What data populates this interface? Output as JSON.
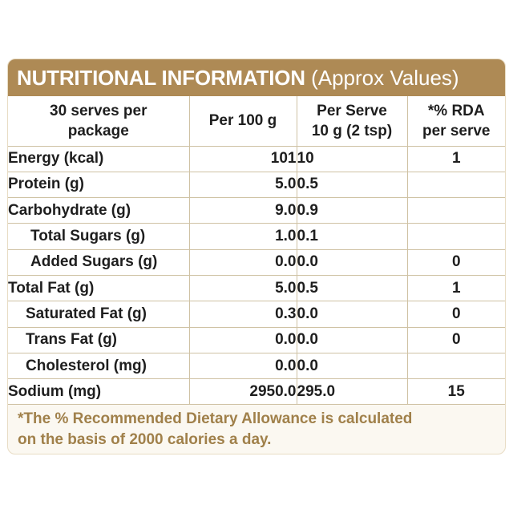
{
  "title": {
    "bold": "NUTRITIONAL INFORMATION",
    "light": "(Approx Values)"
  },
  "header": {
    "col1_line1": "30 serves per",
    "col1_line2": "package",
    "col2": "Per 100 g",
    "col3_line1": "Per Serve",
    "col3_line2": "10 g (2 tsp)",
    "col4_line1": "*% RDA",
    "col4_line2": "per serve"
  },
  "rows": [
    {
      "label": "Energy (kcal)",
      "per100": "101",
      "perServe": "10",
      "rda": "1"
    },
    {
      "label": "Protein (g)",
      "per100": "5.0",
      "perServe": "0.5",
      "rda": ""
    },
    {
      "label": "Carbohydrate (g)",
      "per100": "9.0",
      "perServe": "0.9",
      "rda": ""
    },
    {
      "label": "Total Sugars (g)",
      "per100": "1.0",
      "perServe": "0.1",
      "rda": ""
    },
    {
      "label": "Added Sugars (g)",
      "per100": "0.0",
      "perServe": "0.0",
      "rda": "0"
    },
    {
      "label": "Total Fat (g)",
      "per100": "5.0",
      "perServe": "0.5",
      "rda": "1"
    },
    {
      "label": "Saturated Fat (g)",
      "per100": "0.3",
      "perServe": "0.0",
      "rda": "0"
    },
    {
      "label": "Trans Fat (g)",
      "per100": "0.0",
      "perServe": "0.0",
      "rda": "0"
    },
    {
      "label": "Cholesterol (mg)",
      "per100": "0.0",
      "perServe": "0.0",
      "rda": ""
    },
    {
      "label": "Sodium (mg)",
      "per100": "2950.0",
      "perServe": "295.0",
      "rda": "15"
    }
  ],
  "footnote": {
    "line1": "*The % Recommended Dietary Allowance is calculated",
    "line2": "on the basis of 2000 calories a day."
  },
  "colors": {
    "title_bar": "#ae8a55",
    "footnote_text": "#a0804a",
    "grid": "#cfc2a4"
  }
}
